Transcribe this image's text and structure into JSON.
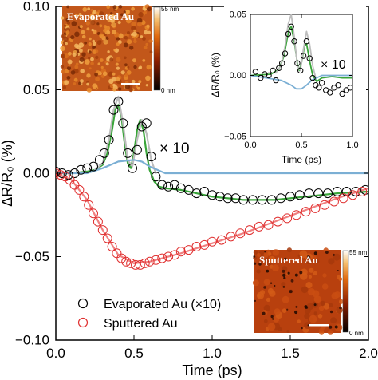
{
  "chart_data": [
    {
      "type": "scatter",
      "panel": "main",
      "xlabel": "Time (ps)",
      "ylabel": "ΔR/R₀ (%)",
      "xlim": [
        0.0,
        2.0
      ],
      "ylim": [
        -0.1,
        0.1
      ],
      "x_ticks": [
        "0.0",
        "0.5",
        "1.0",
        "1.5",
        "2.0"
      ],
      "y_ticks": [
        "0.10",
        "0.05",
        "0.00",
        "−0.05",
        "−0.10"
      ],
      "annotation": "× 10",
      "legend": {
        "placement": "bottom-left",
        "entries": [
          {
            "label": "Evaporated Au (×10)",
            "color": "#000000"
          },
          {
            "label": "Sputtered Au",
            "color": "#e03030"
          }
        ]
      },
      "series": [
        {
          "name": "Evaporated Au (×10)",
          "kind": "markers",
          "color": "#000000",
          "x": [
            0.0,
            0.04,
            0.08,
            0.12,
            0.16,
            0.2,
            0.24,
            0.28,
            0.31,
            0.34,
            0.37,
            0.4,
            0.43,
            0.46,
            0.49,
            0.52,
            0.55,
            0.58,
            0.61,
            0.64,
            0.68,
            0.72,
            0.76,
            0.8,
            0.85,
            0.9,
            0.95,
            1.0,
            1.05,
            1.1,
            1.15,
            1.2,
            1.26,
            1.32,
            1.38,
            1.44,
            1.5,
            1.56,
            1.62,
            1.68,
            1.74,
            1.8,
            1.86,
            1.92,
            1.98
          ],
          "y": [
            0.001,
            0.0,
            -0.001,
            0.0,
            0.002,
            0.003,
            0.004,
            0.008,
            0.012,
            0.02,
            0.038,
            0.043,
            0.03,
            0.012,
            0.003,
            0.014,
            0.028,
            0.03,
            0.01,
            -0.002,
            -0.007,
            -0.008,
            -0.007,
            -0.009,
            -0.01,
            -0.012,
            -0.011,
            -0.013,
            -0.014,
            -0.015,
            -0.015,
            -0.016,
            -0.016,
            -0.016,
            -0.016,
            -0.015,
            -0.014,
            -0.013,
            -0.012,
            -0.012,
            -0.012,
            -0.011,
            -0.011,
            -0.011,
            -0.01
          ]
        },
        {
          "name": "Sputtered Au",
          "kind": "markers",
          "color": "#e03030",
          "x": [
            0.0,
            0.03,
            0.06,
            0.09,
            0.12,
            0.15,
            0.18,
            0.21,
            0.24,
            0.27,
            0.3,
            0.33,
            0.36,
            0.39,
            0.42,
            0.45,
            0.48,
            0.51,
            0.54,
            0.57,
            0.6,
            0.64,
            0.68,
            0.72,
            0.76,
            0.8,
            0.85,
            0.9,
            0.95,
            1.0,
            1.06,
            1.12,
            1.18,
            1.24,
            1.3,
            1.36,
            1.42,
            1.48,
            1.54,
            1.6,
            1.66,
            1.72,
            1.78,
            1.84,
            1.9,
            1.96
          ],
          "y": [
            0.0,
            -0.001,
            -0.002,
            -0.004,
            -0.007,
            -0.01,
            -0.014,
            -0.019,
            -0.024,
            -0.029,
            -0.034,
            -0.039,
            -0.044,
            -0.048,
            -0.051,
            -0.053,
            -0.054,
            -0.055,
            -0.055,
            -0.054,
            -0.053,
            -0.052,
            -0.051,
            -0.05,
            -0.049,
            -0.047,
            -0.046,
            -0.044,
            -0.043,
            -0.041,
            -0.04,
            -0.038,
            -0.036,
            -0.034,
            -0.032,
            -0.031,
            -0.029,
            -0.027,
            -0.025,
            -0.023,
            -0.021,
            -0.019,
            -0.017,
            -0.015,
            -0.013,
            -0.011
          ]
        },
        {
          "name": "Evaporated Au fit",
          "kind": "line",
          "color": "#3aa53a",
          "x": [
            0.0,
            0.1,
            0.2,
            0.25,
            0.3,
            0.33,
            0.36,
            0.38,
            0.4,
            0.42,
            0.44,
            0.46,
            0.48,
            0.5,
            0.52,
            0.54,
            0.56,
            0.58,
            0.6,
            0.63,
            0.66,
            0.7,
            0.8,
            0.9,
            1.0,
            1.2,
            1.4,
            1.6,
            1.8,
            2.0
          ],
          "y": [
            0.0,
            0.0,
            0.001,
            0.002,
            0.005,
            0.012,
            0.026,
            0.038,
            0.041,
            0.034,
            0.018,
            0.006,
            0.003,
            0.012,
            0.026,
            0.032,
            0.026,
            0.012,
            0.002,
            -0.005,
            -0.008,
            -0.009,
            -0.01,
            -0.012,
            -0.014,
            -0.016,
            -0.016,
            -0.014,
            -0.012,
            -0.011
          ]
        },
        {
          "name": "Evaporated Au coherent component",
          "kind": "line",
          "color": "#bdbdbd",
          "x": [
            0.25,
            0.3,
            0.34,
            0.37,
            0.4,
            0.43,
            0.46,
            0.49,
            0.52,
            0.55,
            0.58,
            0.61,
            0.64
          ],
          "y": [
            0.002,
            0.006,
            0.02,
            0.038,
            0.046,
            0.03,
            0.008,
            0.004,
            0.02,
            0.032,
            0.024,
            0.008,
            0.0
          ]
        },
        {
          "name": "Evaporated Au background",
          "kind": "line",
          "color": "#7bafd4",
          "x": [
            0.0,
            0.2,
            0.3,
            0.4,
            0.5,
            0.55,
            0.6,
            0.7,
            0.8,
            1.0,
            1.5,
            2.0
          ],
          "y": [
            0.0,
            0.0,
            0.003,
            0.007,
            0.008,
            0.007,
            0.004,
            0.0,
            0.0,
            0.0,
            0.0,
            0.0
          ]
        },
        {
          "name": "Sputtered Au fit",
          "kind": "line",
          "color": "#f08080",
          "x": [
            0.0,
            0.1,
            0.2,
            0.3,
            0.4,
            0.5,
            0.6,
            0.8,
            1.0,
            1.2,
            1.4,
            1.6,
            1.8,
            2.0
          ],
          "y": [
            0.0,
            -0.004,
            -0.016,
            -0.034,
            -0.049,
            -0.054,
            -0.053,
            -0.048,
            -0.042,
            -0.036,
            -0.029,
            -0.022,
            -0.015,
            -0.009
          ]
        }
      ]
    },
    {
      "type": "line",
      "panel": "inset",
      "xlabel": "Time (ps)",
      "ylabel": "ΔR/R₀ (%)",
      "xlim": [
        0.0,
        1.0
      ],
      "ylim": [
        -0.05,
        0.05
      ],
      "x_ticks": [
        "0.0",
        "0.5",
        "1.0"
      ],
      "y_ticks": [
        "0.05",
        "0.00",
        "−0.05"
      ],
      "annotation": "× 10",
      "series": [
        {
          "name": "Evaporated Au data",
          "kind": "markers",
          "color": "#000000",
          "x": [
            0.05,
            0.1,
            0.14,
            0.18,
            0.22,
            0.25,
            0.28,
            0.31,
            0.34,
            0.37,
            0.4,
            0.43,
            0.46,
            0.49,
            0.52,
            0.55,
            0.58,
            0.61,
            0.64,
            0.67,
            0.7,
            0.74,
            0.78,
            0.82,
            0.86,
            0.9,
            0.94,
            0.98
          ],
          "y": [
            0.003,
            -0.002,
            0.001,
            0.0,
            0.004,
            -0.004,
            0.006,
            0.01,
            0.018,
            0.034,
            0.04,
            0.028,
            0.01,
            0.004,
            0.016,
            0.028,
            0.014,
            -0.002,
            -0.008,
            -0.01,
            -0.006,
            -0.012,
            -0.014,
            -0.01,
            -0.008,
            -0.015,
            -0.012,
            -0.01
          ]
        },
        {
          "name": "Evaporated Au fit",
          "kind": "line",
          "color": "#3aa53a",
          "x": [
            0.0,
            0.2,
            0.28,
            0.33,
            0.36,
            0.38,
            0.4,
            0.43,
            0.46,
            0.48,
            0.5,
            0.53,
            0.55,
            0.58,
            0.61,
            0.65,
            0.7,
            0.8,
            0.9,
            1.0
          ],
          "y": [
            0.0,
            0.001,
            0.005,
            0.016,
            0.03,
            0.038,
            0.04,
            0.028,
            0.01,
            0.004,
            0.01,
            0.024,
            0.026,
            0.012,
            0.0,
            -0.005,
            -0.002,
            -0.001,
            -0.002,
            -0.002
          ]
        },
        {
          "name": "Evaporated Au coherent component",
          "kind": "line",
          "color": "#bdbdbd",
          "x": [
            0.25,
            0.3,
            0.34,
            0.37,
            0.4,
            0.43,
            0.46,
            0.49,
            0.52,
            0.55,
            0.58,
            0.61,
            0.64
          ],
          "y": [
            0.002,
            0.008,
            0.024,
            0.042,
            0.05,
            0.032,
            0.008,
            0.004,
            0.022,
            0.036,
            0.026,
            0.008,
            -0.002
          ]
        },
        {
          "name": "Evaporated Au background",
          "kind": "line",
          "color": "#7bafd4",
          "x": [
            0.0,
            0.3,
            0.4,
            0.45,
            0.5,
            0.55,
            0.6,
            0.7,
            0.8,
            1.0
          ],
          "y": [
            0.0,
            -0.004,
            -0.008,
            -0.011,
            -0.011,
            -0.008,
            -0.004,
            0.0,
            0.0,
            0.0
          ]
        }
      ]
    }
  ],
  "afm_images": [
    {
      "label": "Evaporated Au",
      "colorbar_max": "55 nm",
      "colorbar_min": "0 nm",
      "base_color": "#c2571a"
    },
    {
      "label": "Sputtered Au",
      "colorbar_max": "55 nm",
      "colorbar_min": "0 nm",
      "base_color": "#b8400e"
    }
  ]
}
